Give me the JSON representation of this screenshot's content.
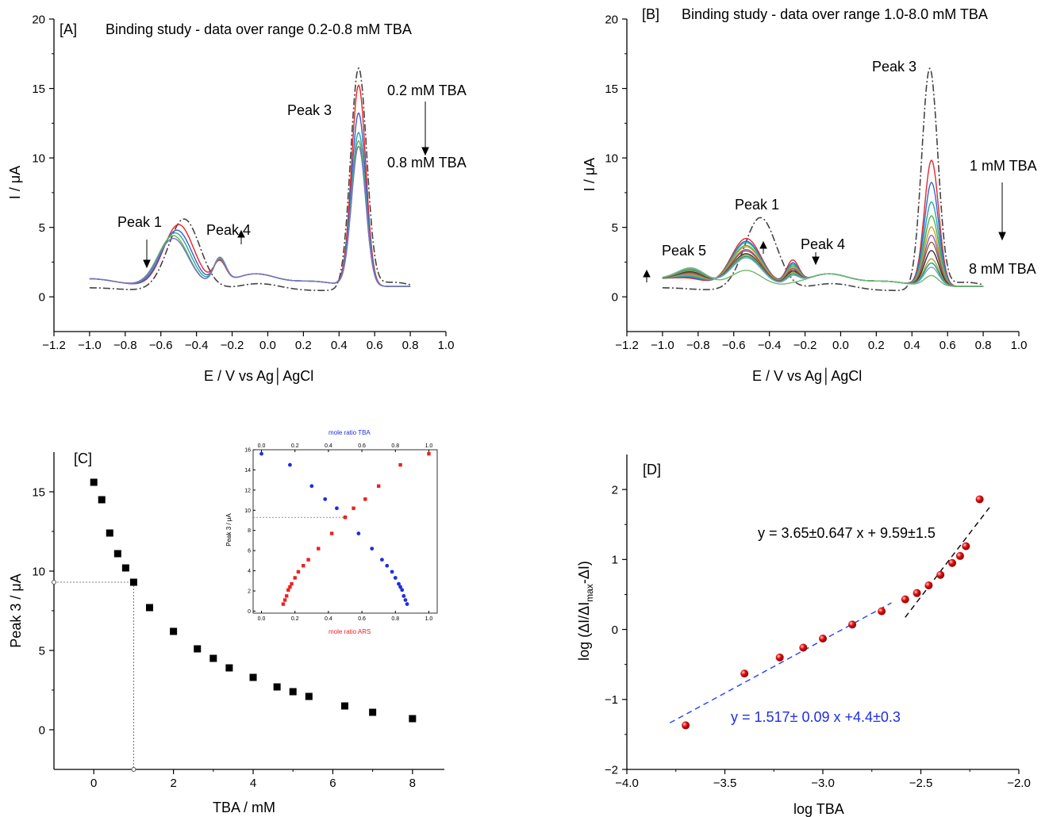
{
  "figure": {
    "panel_a": {
      "label": "[A]",
      "title": "Binding study - data over range 0.2-0.8 mM TBA",
      "xlabel": "E / V vs Ag│AgCl",
      "ylabel": "I / μA",
      "annotations": {
        "peak1": "Peak 1",
        "peak3": "Peak 3",
        "peak4": "Peak 4",
        "range_high": "0.2 mM TBA",
        "range_low": "0.8 mM TBA"
      }
    },
    "panel_b": {
      "label": "[B]",
      "title": "Binding study - data over range 1.0-8.0 mM TBA",
      "xlabel": "E / V vs Ag│AgCl",
      "ylabel": "I / μA",
      "annotations": {
        "peak1": "Peak 1",
        "peak3": "Peak 3",
        "peak4": "Peak 4",
        "peak5": "Peak 5",
        "range_high": "1 mM TBA",
        "range_low": "8 mM TBA"
      }
    },
    "panel_c": {
      "label": "[C]",
      "xlabel": "TBA / mM",
      "ylabel": "Peak 3 / μA",
      "inset": {
        "top_label": "mole ratio TBA",
        "bottom_label": "mole ratio ARS",
        "ylabel": "Peak 3 / μA"
      }
    },
    "panel_d": {
      "label": "[D]",
      "xlabel": "log TBA",
      "ylabel": "log (ΔI/ΔI",
      "ylabel_sub": "max",
      "ylabel_end": "-ΔI)",
      "eq_high": "y = 3.65±0.647 x + 9.59±1.5",
      "eq_low": "y = 1.517± 0.09 x +4.4±0.3"
    }
  },
  "colors": {
    "reference": "#444444",
    "scan_curves": [
      "#ee2222",
      "#3a5fcd",
      "#2fa5a5",
      "#5ab74c",
      "#7e6fc4"
    ],
    "scan_curves_b": [
      "#e8262b",
      "#2f6bd0",
      "#2aa6a6",
      "#4cb84a",
      "#d89b2a",
      "#8e5fb7",
      "#9a5a3a",
      "#333333",
      "#b0a040",
      "#1e9e6e",
      "#6aa6d8",
      "#70b870",
      "#e8262b"
    ],
    "markers_c": "#000000",
    "inset_tba": "#1f2ee0",
    "inset_ars": "#ee2020",
    "points_d": "#e01010",
    "fit_low": "#2040ff",
    "fit_high": "#000000"
  },
  "chart_data": [
    {
      "type": "line",
      "panel": "A",
      "xlim": [
        -1.2,
        1.0
      ],
      "ylim": [
        -2.5,
        20
      ],
      "xticks": [
        -1.2,
        -1.0,
        -0.8,
        -0.6,
        -0.4,
        -0.2,
        0.0,
        0.2,
        0.4,
        0.6,
        0.8,
        1.0
      ],
      "yticks": [
        0,
        5,
        10,
        15,
        20
      ],
      "series": [
        {
          "peaks": {
            "peak1": [
              -0.47,
              5.6
            ],
            "peak3": [
              0.51,
              16.3
            ]
          }
        },
        {
          "peaks": {
            "peak1": [
              -0.5,
              5.2
            ],
            "peak4": [
              -0.27,
              2.9
            ],
            "peak3": [
              0.51,
              15.2
            ]
          }
        },
        {
          "peaks": {
            "peak1": [
              -0.51,
              4.8
            ],
            "peak4": [
              -0.27,
              3.0
            ],
            "peak3": [
              0.51,
              13.2
            ]
          }
        },
        {
          "peaks": {
            "peak1": [
              -0.52,
              4.6
            ],
            "peak4": [
              -0.27,
              3.1
            ],
            "peak3": [
              0.51,
              11.8
            ]
          }
        },
        {
          "peaks": {
            "peak1": [
              -0.53,
              4.4
            ],
            "peak4": [
              -0.27,
              3.1
            ],
            "peak3": [
              0.51,
              11.2
            ]
          }
        },
        {
          "peaks": {
            "peak1": [
              -0.53,
              4.2
            ],
            "peak4": [
              -0.27,
              3.2
            ],
            "peak3": [
              0.51,
              10.8
            ]
          }
        }
      ]
    },
    {
      "type": "line",
      "panel": "B",
      "xlim": [
        -1.2,
        1.0
      ],
      "ylim": [
        -2.5,
        20
      ],
      "xticks": [
        -1.2,
        -1.0,
        -0.8,
        -0.6,
        -0.4,
        -0.2,
        0.0,
        0.2,
        0.4,
        0.6,
        0.8,
        1.0
      ],
      "yticks": [
        0,
        5,
        10,
        15,
        20
      ],
      "series": [
        {
          "peaks": {
            "peak1": [
              -0.45,
              5.7
            ],
            "peak3": [
              0.5,
              16.3
            ]
          }
        },
        {
          "peaks": {
            "peak1": [
              -0.53,
              4.2
            ],
            "peak4": [
              -0.27,
              3.0
            ],
            "peak3": [
              0.51,
              9.8
            ]
          }
        },
        {
          "peaks": {
            "peak1": [
              -0.53,
              4.0
            ],
            "peak4": [
              -0.27,
              2.8
            ],
            "peak3": [
              0.51,
              8.2
            ]
          }
        },
        {
          "peaks": {
            "peak1": [
              -0.53,
              3.9
            ],
            "peak4": [
              -0.27,
              2.7
            ],
            "peak3": [
              0.51,
              6.8
            ]
          }
        },
        {
          "peaks": {
            "peak1": [
              -0.53,
              3.7
            ],
            "peak4": [
              -0.27,
              2.6
            ],
            "peak3": [
              0.51,
              5.8
            ]
          }
        },
        {
          "peaks": {
            "peak1": [
              -0.53,
              3.6
            ],
            "peak4": [
              -0.27,
              2.5
            ],
            "peak3": [
              0.51,
              5.0
            ]
          }
        },
        {
          "peaks": {
            "peak1": [
              -0.53,
              3.4
            ],
            "peak4": [
              -0.27,
              2.4
            ],
            "peak3": [
              0.51,
              4.4
            ]
          }
        },
        {
          "peaks": {
            "peak1": [
              -0.53,
              3.3
            ],
            "peak4": [
              -0.27,
              2.3
            ],
            "peak3": [
              0.51,
              3.9
            ]
          }
        },
        {
          "peaks": {
            "peak1": [
              -0.53,
              3.1
            ],
            "peak4": [
              -0.27,
              2.2
            ],
            "peak3": [
              0.51,
              3.3
            ]
          }
        },
        {
          "peaks": {
            "peak1": [
              -0.53,
              3.0
            ],
            "peak4": [
              -0.27,
              2.1
            ],
            "peak3": [
              0.51,
              2.7
            ]
          }
        },
        {
          "peaks": {
            "peak1": [
              -0.53,
              2.9
            ],
            "peak4": [
              -0.27,
              2.0
            ],
            "peak3": [
              0.51,
              2.4
            ]
          }
        },
        {
          "peaks": {
            "peak1": [
              -0.53,
              2.8
            ],
            "peak4": [
              -0.27,
              1.9
            ],
            "peak3": [
              0.51,
              2.1
            ]
          }
        },
        {
          "peaks": {
            "peak1": [
              -0.53,
              1.9
            ],
            "peak4": [
              -0.27,
              1.4
            ],
            "peak3": [
              0.51,
              1.5
            ]
          }
        }
      ]
    },
    {
      "type": "scatter",
      "panel": "C",
      "xlim": [
        -1,
        8.8
      ],
      "ylim": [
        -2.5,
        17.5
      ],
      "xticks": [
        0,
        2,
        4,
        6,
        8
      ],
      "yticks": [
        0,
        5,
        10,
        15
      ],
      "x": [
        0,
        0.2,
        0.4,
        0.6,
        0.8,
        1.0,
        1.4,
        2.0,
        2.6,
        3.0,
        3.4,
        4.0,
        4.6,
        5.0,
        5.4,
        6.3,
        7.0,
        8.0
      ],
      "y": [
        15.6,
        14.5,
        12.4,
        11.1,
        10.2,
        9.3,
        7.7,
        6.2,
        5.1,
        4.5,
        3.9,
        3.3,
        2.7,
        2.4,
        2.1,
        1.5,
        1.1,
        0.7
      ],
      "guide_point": [
        1.0,
        9.3
      ]
    },
    {
      "type": "scatter",
      "panel": "C-inset",
      "xlim": [
        -0.05,
        1.05
      ],
      "ylim": [
        -0.2,
        16
      ],
      "xticks": [
        0.0,
        0.2,
        0.4,
        0.6,
        0.8,
        1.0
      ],
      "yticks": [
        0,
        2,
        4,
        6,
        8,
        10,
        12,
        14,
        16
      ],
      "series": [
        {
          "name": "mole ratio TBA",
          "x": [
            0.0,
            0.17,
            0.3,
            0.38,
            0.45,
            0.5,
            0.58,
            0.66,
            0.72,
            0.75,
            0.78,
            0.8,
            0.82,
            0.83,
            0.84,
            0.85,
            0.86,
            0.87
          ],
          "y": [
            15.6,
            14.5,
            12.4,
            11.1,
            10.2,
            9.3,
            7.7,
            6.2,
            5.1,
            4.5,
            3.9,
            3.3,
            2.7,
            2.4,
            2.1,
            1.5,
            1.1,
            0.7
          ]
        },
        {
          "name": "mole ratio ARS",
          "x": [
            0.13,
            0.14,
            0.15,
            0.16,
            0.17,
            0.18,
            0.2,
            0.22,
            0.25,
            0.28,
            0.34,
            0.42,
            0.5,
            0.55,
            0.62,
            0.7,
            0.83,
            1.0
          ],
          "y": [
            0.7,
            1.1,
            1.5,
            2.1,
            2.4,
            2.7,
            3.3,
            3.9,
            4.5,
            5.1,
            6.2,
            7.7,
            9.3,
            10.2,
            11.1,
            12.4,
            14.5,
            15.6
          ]
        }
      ],
      "guide_y": 9.3
    },
    {
      "type": "scatter",
      "panel": "D",
      "xlim": [
        -4.0,
        -2.0
      ],
      "ylim": [
        -2.0,
        2.5
      ],
      "xticks": [
        -4.0,
        -3.5,
        -3.0,
        -2.5,
        -2.0
      ],
      "yticks": [
        -2,
        -1,
        0,
        1,
        2
      ],
      "x": [
        -3.7,
        -3.4,
        -3.22,
        -3.1,
        -3.0,
        -2.85,
        -2.7,
        -2.58,
        -2.52,
        -2.46,
        -2.4,
        -2.34,
        -2.3,
        -2.27,
        -2.2
      ],
      "y": [
        -1.37,
        -0.63,
        -0.4,
        -0.26,
        -0.13,
        0.07,
        0.26,
        0.43,
        0.52,
        0.63,
        0.78,
        0.95,
        1.05,
        1.19,
        1.86
      ],
      "fits": [
        {
          "slope": 1.517,
          "intercept": 4.4,
          "x_range": [
            -3.78,
            -2.65
          ]
        },
        {
          "slope": 3.65,
          "intercept": 9.59,
          "x_range": [
            -2.58,
            -2.15
          ]
        }
      ]
    }
  ]
}
